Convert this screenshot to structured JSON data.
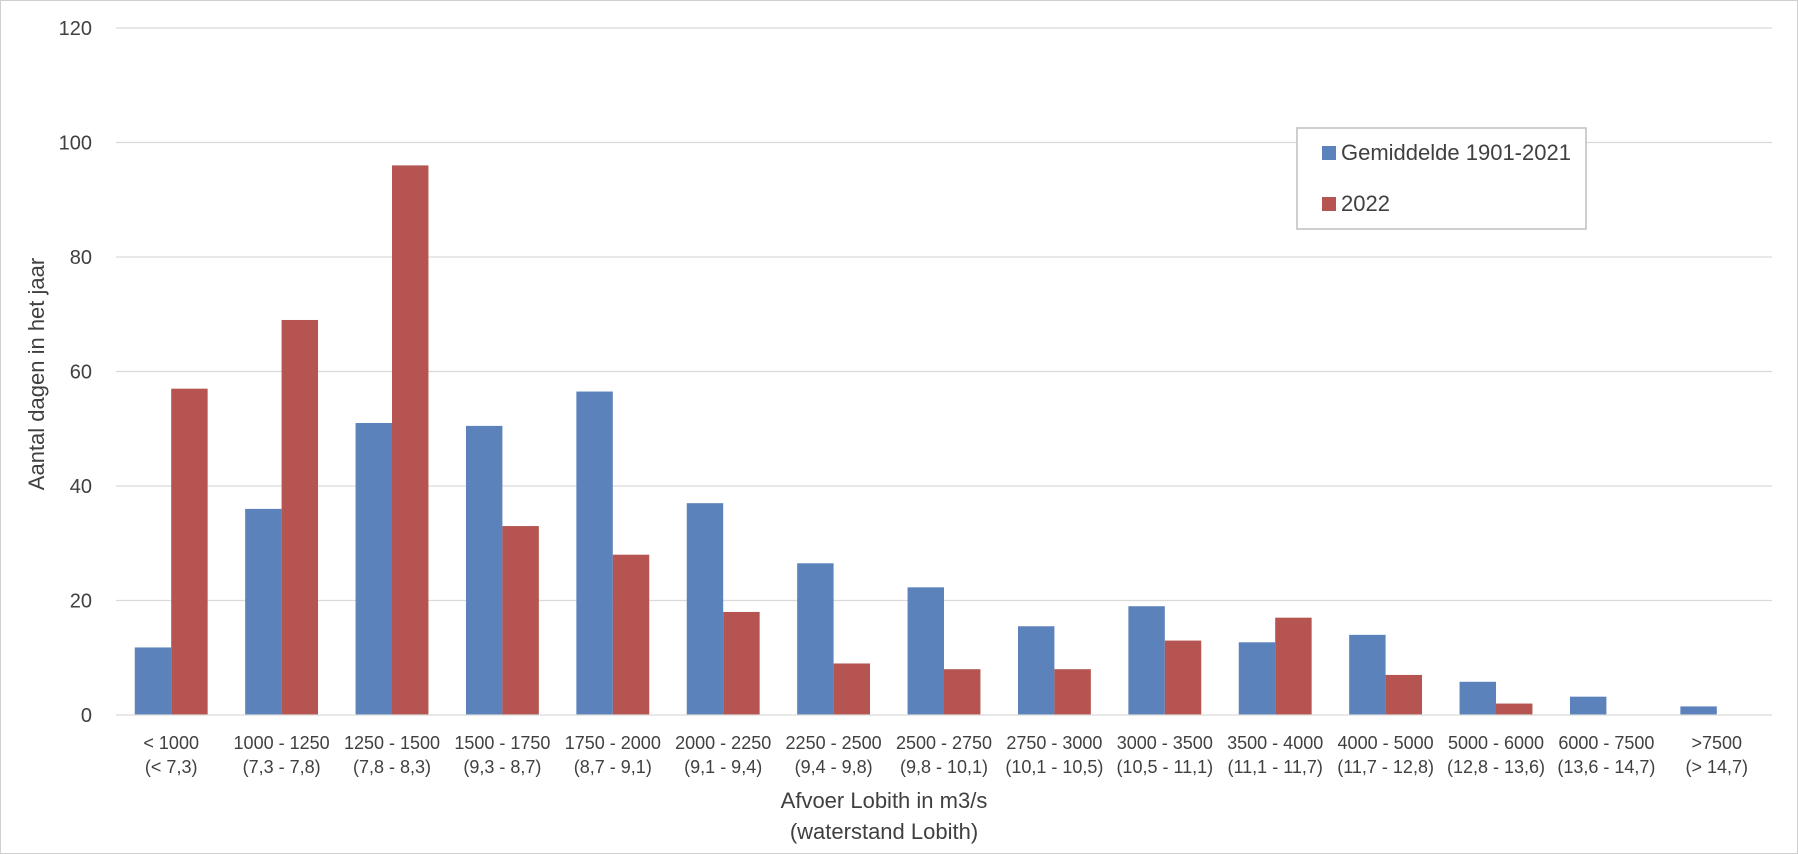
{
  "chart_data": {
    "type": "bar",
    "title": "",
    "xlabel": "Afvoer Lobith in m3/s",
    "xlabel_sub": "(waterstand Lobith)",
    "ylabel": "Aantal dagen in het jaar",
    "ylim": [
      0,
      120
    ],
    "yticks": [
      0,
      20,
      40,
      60,
      80,
      100,
      120
    ],
    "grid": true,
    "legend_position": "top-right",
    "categories": [
      {
        "range": "< 1000",
        "level": "(< 7,3)"
      },
      {
        "range": "1000 - 1250",
        "level": "(7,3 - 7,8)"
      },
      {
        "range": "1250 - 1500",
        "level": "(7,8 - 8,3)"
      },
      {
        "range": "1500 - 1750",
        "level": "(9,3 - 8,7)"
      },
      {
        "range": "1750 - 2000",
        "level": "(8,7 - 9,1)"
      },
      {
        "range": "2000 - 2250",
        "level": "(9,1 - 9,4)"
      },
      {
        "range": "2250 - 2500",
        "level": "(9,4 - 9,8)"
      },
      {
        "range": "2500 - 2750",
        "level": "(9,8 - 10,1)"
      },
      {
        "range": "2750 - 3000",
        "level": "(10,1 - 10,5)"
      },
      {
        "range": "3000 - 3500",
        "level": "(10,5 - 11,1)"
      },
      {
        "range": "3500 - 4000",
        "level": "(11,1 - 11,7)"
      },
      {
        "range": "4000 - 5000",
        "level": "(11,7 - 12,8)"
      },
      {
        "range": "5000 - 6000",
        "level": "(12,8 - 13,6)"
      },
      {
        "range": "6000 - 7500",
        "level": "(13,6 - 14,7)"
      },
      {
        "range": ">7500",
        "level": "(> 14,7)"
      }
    ],
    "series": [
      {
        "name": "Gemiddelde 1901-2021",
        "color": "#5b82bb",
        "values": [
          11.8,
          36,
          51,
          50.5,
          56.5,
          37,
          26.5,
          22.3,
          15.5,
          19,
          12.7,
          14,
          5.8,
          3.2,
          1.5
        ]
      },
      {
        "name": "2022",
        "color": "#b55450",
        "values": [
          57,
          69,
          96,
          33,
          28,
          18,
          9,
          8,
          8,
          13,
          17,
          7,
          2,
          0,
          0
        ]
      }
    ]
  }
}
